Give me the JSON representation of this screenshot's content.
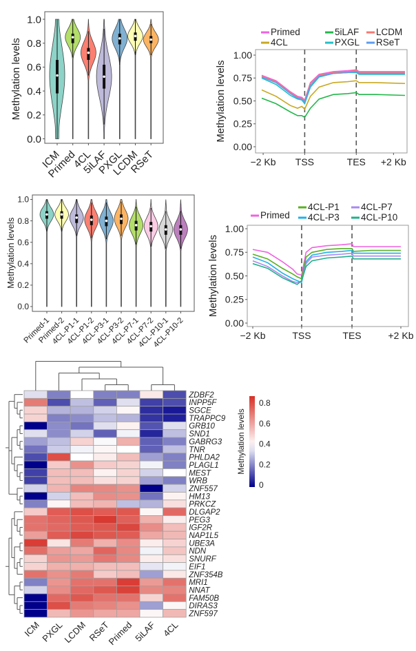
{
  "chart_data": [
    {
      "type": "violin",
      "ylabel": "Methylation levels",
      "ylim": [
        0,
        1
      ],
      "yticks": [
        "0.0",
        "0.2",
        "0.4",
        "0.6",
        "0.8",
        "1.0"
      ],
      "categories": [
        "ICM",
        "Primed",
        "4CL",
        "5iLAF",
        "PXGL",
        "LCDM",
        "RSeT"
      ],
      "colors": [
        "#8dd3c7",
        "#b3de69",
        "#fb8072",
        "#bebada",
        "#80b1d3",
        "#ffffb3",
        "#fdb462"
      ],
      "median": [
        0.53,
        0.85,
        0.72,
        0.52,
        0.84,
        0.86,
        0.83
      ],
      "q1": [
        0.38,
        0.8,
        0.66,
        0.42,
        0.79,
        0.82,
        0.8
      ],
      "q3": [
        0.66,
        0.88,
        0.76,
        0.62,
        0.88,
        0.89,
        0.86
      ],
      "whisker_low": [
        0.0,
        0.68,
        0.53,
        0.12,
        0.62,
        0.7,
        0.7
      ],
      "whisker_high": [
        1.0,
        1.0,
        0.9,
        0.92,
        1.0,
        1.0,
        0.96
      ],
      "min": [
        0,
        0,
        0,
        0,
        0,
        0,
        0
      ],
      "max": [
        1,
        1,
        1,
        1,
        1,
        1,
        1
      ]
    },
    {
      "type": "line",
      "ylabel": "Methylation levels",
      "ylim": [
        0,
        1
      ],
      "yticks": [
        "0.00",
        "0.25",
        "0.50",
        "0.75",
        "1.00"
      ],
      "xticks": [
        {
          "label": "−2 Kb",
          "x": 0.01
        },
        {
          "label": "TSS",
          "x": 0.3
        },
        {
          "label": "TES",
          "x": 0.66
        },
        {
          "label": "+2 Kb",
          "x": 0.92
        }
      ],
      "vlines": [
        0.3,
        0.66
      ],
      "legend": "top",
      "x": [
        0,
        0.1,
        0.2,
        0.25,
        0.28,
        0.3,
        0.34,
        0.4,
        0.5,
        0.6,
        0.66,
        0.68,
        0.8,
        1.0
      ],
      "series": [
        {
          "name": "Primed",
          "color": "#f062e0",
          "values": [
            0.78,
            0.72,
            0.6,
            0.55,
            0.54,
            0.51,
            0.7,
            0.79,
            0.82,
            0.83,
            0.84,
            0.82,
            0.82,
            0.82
          ]
        },
        {
          "name": "4CL",
          "color": "#c8a820",
          "values": [
            0.62,
            0.55,
            0.45,
            0.42,
            0.44,
            0.41,
            0.55,
            0.65,
            0.7,
            0.71,
            0.72,
            0.7,
            0.7,
            0.69
          ]
        },
        {
          "name": "5iLAF",
          "color": "#22b84a",
          "values": [
            0.53,
            0.47,
            0.38,
            0.34,
            0.34,
            0.32,
            0.42,
            0.52,
            0.57,
            0.58,
            0.59,
            0.57,
            0.57,
            0.56
          ]
        },
        {
          "name": "PXGL",
          "color": "#20c0c8",
          "values": [
            0.75,
            0.68,
            0.56,
            0.52,
            0.51,
            0.47,
            0.65,
            0.76,
            0.8,
            0.81,
            0.81,
            0.79,
            0.79,
            0.79
          ]
        },
        {
          "name": "LCDM",
          "color": "#f87870",
          "values": [
            0.77,
            0.71,
            0.59,
            0.54,
            0.53,
            0.5,
            0.69,
            0.78,
            0.81,
            0.82,
            0.83,
            0.81,
            0.81,
            0.81
          ]
        },
        {
          "name": "RSeT",
          "color": "#5c9cf0",
          "values": [
            0.76,
            0.7,
            0.58,
            0.53,
            0.52,
            0.49,
            0.67,
            0.77,
            0.8,
            0.81,
            0.82,
            0.8,
            0.8,
            0.8
          ]
        }
      ]
    },
    {
      "type": "violin",
      "ylabel": "Methylation levels",
      "ylim": [
        0,
        1
      ],
      "yticks": [
        "0.0",
        "0.2",
        "0.4",
        "0.6",
        "0.8",
        "1.0"
      ],
      "categories": [
        "Primed-1",
        "Primed-2",
        "4CL-P1-1",
        "4CL-P1-2",
        "4CL-P3-1",
        "4CL-P3-2",
        "4CL-P7-1",
        "4CL-P7-2",
        "4CL-P10-1",
        "4CL-P10-2"
      ],
      "colors": [
        "#8dd3c7",
        "#ffffb3",
        "#bebada",
        "#fb8072",
        "#80b1d3",
        "#fdb462",
        "#b3de69",
        "#fccde5",
        "#d9d9d9",
        "#bc80bd"
      ],
      "median": [
        0.86,
        0.86,
        0.83,
        0.81,
        0.8,
        0.82,
        0.76,
        0.75,
        0.72,
        0.72
      ],
      "q1": [
        0.82,
        0.82,
        0.78,
        0.76,
        0.75,
        0.77,
        0.71,
        0.7,
        0.67,
        0.67
      ],
      "q3": [
        0.89,
        0.89,
        0.86,
        0.85,
        0.84,
        0.86,
        0.8,
        0.79,
        0.76,
        0.76
      ],
      "whisker_low": [
        0.7,
        0.7,
        0.66,
        0.64,
        0.63,
        0.66,
        0.58,
        0.56,
        0.54,
        0.54
      ],
      "whisker_high": [
        1.0,
        1.0,
        1.0,
        0.97,
        0.97,
        0.98,
        0.93,
        0.92,
        0.89,
        0.89
      ],
      "min": [
        0,
        0,
        0,
        0,
        0,
        0,
        0,
        0,
        0,
        0
      ],
      "max": [
        1,
        1,
        1,
        1,
        1,
        1,
        1,
        1,
        1,
        1
      ]
    },
    {
      "type": "line",
      "ylabel": "Methylation levels",
      "ylim": [
        0,
        1
      ],
      "yticks": [
        "0.00",
        "0.25",
        "0.50",
        "0.75",
        "1.00"
      ],
      "xticks": [
        {
          "label": "−2 Kb",
          "x": 0
        },
        {
          "label": "TSS",
          "x": 0.33
        },
        {
          "label": "TES",
          "x": 0.67
        },
        {
          "label": "+2 Kb",
          "x": 1
        }
      ],
      "vlines": [
        0.33,
        0.67
      ],
      "legend": "top",
      "x": [
        0,
        0.1,
        0.2,
        0.27,
        0.3,
        0.33,
        0.36,
        0.4,
        0.5,
        0.6,
        0.67,
        0.68,
        0.8,
        1.0
      ],
      "series": [
        {
          "name": "Primed",
          "color": "#f062e0",
          "values": [
            0.78,
            0.75,
            0.65,
            0.57,
            0.52,
            0.51,
            0.75,
            0.8,
            0.82,
            0.83,
            0.84,
            0.81,
            0.81,
            0.81
          ]
        },
        {
          "name": "4CL-P1",
          "color": "#58b020",
          "values": [
            0.73,
            0.68,
            0.58,
            0.52,
            0.49,
            0.47,
            0.7,
            0.75,
            0.78,
            0.79,
            0.79,
            0.76,
            0.77,
            0.77
          ]
        },
        {
          "name": "4CL-P3",
          "color": "#20b0e8",
          "values": [
            0.7,
            0.64,
            0.53,
            0.47,
            0.45,
            0.43,
            0.65,
            0.72,
            0.75,
            0.76,
            0.77,
            0.74,
            0.74,
            0.74
          ]
        },
        {
          "name": "4CL-P7",
          "color": "#a888f0",
          "values": [
            0.66,
            0.6,
            0.5,
            0.44,
            0.43,
            0.44,
            0.63,
            0.7,
            0.72,
            0.73,
            0.74,
            0.71,
            0.71,
            0.71
          ]
        },
        {
          "name": "4CL-P10",
          "color": "#20b088",
          "values": [
            0.63,
            0.58,
            0.48,
            0.43,
            0.41,
            0.45,
            0.6,
            0.66,
            0.69,
            0.7,
            0.71,
            0.68,
            0.68,
            0.68
          ]
        }
      ]
    },
    {
      "type": "heatmap",
      "columns": [
        "ICM",
        "PXGL",
        "LCDM",
        "RSeT",
        "Primed",
        "5iLAF",
        "4CL"
      ],
      "rows": [
        "ZDBF2",
        "INPP5F",
        "SGCE",
        "TRAPPC9",
        "GRB10",
        "SND1",
        "GABRG3",
        "TNR",
        "PHLDA2",
        "PLAGL1",
        "MEST",
        "WRB",
        "ZNF557",
        "HM13",
        "PRKCZ",
        "DLGAP2",
        "PEG3",
        "IGF2R",
        "NAP1L5",
        "UBE3A",
        "NDN",
        "SNURF",
        "EIF1",
        "ZNF354B",
        "MRI1",
        "NNAT",
        "FAM50B",
        "DIRAS3",
        "ZNF597"
      ],
      "values": [
        [
          0.35,
          0.2,
          0.4,
          0.2,
          0.2,
          0.45,
          0.12
        ],
        [
          0.7,
          0.12,
          0.3,
          0.15,
          0.35,
          0.1,
          0.12
        ],
        [
          0.5,
          0.28,
          0.28,
          0.33,
          0.42,
          0.07,
          0.04
        ],
        [
          0.5,
          0.2,
          0.22,
          0.3,
          0.28,
          0.08,
          0.05
        ],
        [
          0.0,
          0.22,
          0.18,
          0.35,
          0.43,
          0.13,
          0.35
        ],
        [
          0.35,
          0.22,
          0.33,
          0.15,
          0.38,
          0.06,
          0.3
        ],
        [
          0.25,
          0.3,
          0.5,
          0.39,
          0.58,
          0.15,
          0.2
        ],
        [
          0.18,
          0.32,
          0.38,
          0.42,
          0.4,
          0.15,
          0.3
        ],
        [
          0.12,
          0.8,
          0.4,
          0.44,
          0.55,
          0.25,
          0.2
        ],
        [
          0.0,
          0.52,
          0.65,
          0.52,
          0.5,
          0.38,
          0.2
        ],
        [
          0.1,
          0.55,
          0.55,
          0.43,
          0.5,
          0.33,
          0.4
        ],
        [
          0.1,
          0.55,
          0.55,
          0.47,
          0.5,
          0.25,
          0.2
        ],
        [
          0.33,
          0.57,
          0.68,
          0.67,
          0.65,
          0.0,
          0.33
        ],
        [
          0.0,
          0.33,
          0.55,
          0.66,
          0.65,
          0.18,
          0.43
        ],
        [
          0.2,
          0.42,
          0.55,
          0.57,
          0.3,
          0.28,
          0.47
        ],
        [
          0.52,
          0.77,
          0.8,
          0.77,
          0.78,
          0.42,
          0.74
        ],
        [
          0.72,
          0.75,
          0.78,
          0.85,
          0.76,
          0.58,
          0.44
        ],
        [
          0.72,
          0.74,
          0.77,
          0.78,
          0.82,
          0.66,
          0.55
        ],
        [
          0.62,
          0.77,
          0.82,
          0.78,
          0.77,
          0.6,
          0.56
        ],
        [
          0.84,
          0.46,
          0.7,
          0.58,
          0.66,
          0.44,
          0.5
        ],
        [
          0.73,
          0.62,
          0.6,
          0.75,
          0.67,
          0.38,
          0.53
        ],
        [
          0.5,
          0.64,
          0.63,
          0.71,
          0.67,
          0.44,
          0.47
        ],
        [
          0.5,
          0.58,
          0.58,
          0.55,
          0.55,
          0.36,
          0.38
        ],
        [
          0.72,
          0.65,
          0.7,
          0.52,
          0.55,
          0.25,
          0.45
        ],
        [
          0.2,
          0.64,
          0.72,
          0.72,
          0.84,
          0.63,
          0.72
        ],
        [
          0.33,
          0.66,
          0.74,
          0.78,
          0.83,
          0.67,
          0.68
        ],
        [
          0.0,
          0.74,
          0.78,
          0.72,
          0.72,
          0.5,
          0.72
        ],
        [
          0.0,
          0.8,
          0.7,
          0.68,
          0.65,
          0.25,
          0.42
        ],
        [
          0.0,
          0.56,
          0.64,
          0.6,
          0.6,
          0.42,
          0.56
        ]
      ],
      "colorbar": {
        "title": "Methylation levels",
        "ticks": [
          "0",
          "0.2",
          "0.4",
          "0.6",
          "0.8"
        ],
        "range": [
          0,
          0.87
        ],
        "low": "#00008b",
        "mid": "#ffffff",
        "high": "#d73027"
      }
    }
  ]
}
